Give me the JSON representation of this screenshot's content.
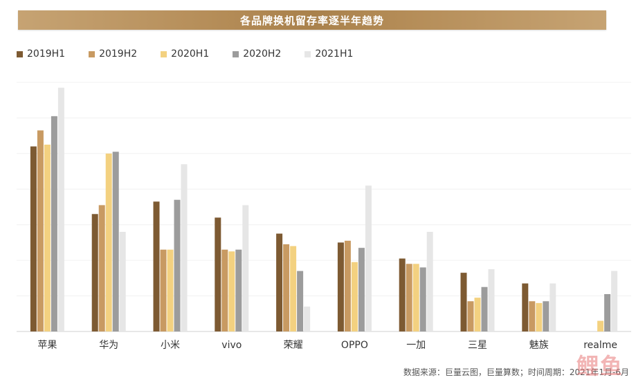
{
  "title": "各品牌换机留存率逐半年趋势",
  "source_text": "数据来源：巨量云图，巨量算数；时间周期：2021年1月-6月",
  "watermark_text": "鲤鱼",
  "colors": {
    "2019H1": "#7d5a32",
    "2019H2": "#c89a62",
    "2020H1": "#f3d180",
    "2020H2": "#9c9c9c",
    "2021H1": "#e6e6e6",
    "title_bar": "#b48c57",
    "gridline": "#f0f0f0"
  },
  "chart_data": {
    "type": "bar",
    "title": "各品牌换机留存率逐半年趋势",
    "categories": [
      "苹果",
      "华为",
      "小米",
      "vivo",
      "荣耀",
      "OPPO",
      "一加",
      "三星",
      "魅族",
      "realme"
    ],
    "series": [
      {
        "name": "2019H1",
        "values": [
          52,
          33,
          36.5,
          32,
          27.5,
          25,
          20.5,
          16.5,
          13.5,
          null
        ]
      },
      {
        "name": "2019H2",
        "values": [
          56.5,
          35.5,
          23,
          23,
          24.5,
          25.5,
          19,
          8.5,
          8.5,
          null
        ]
      },
      {
        "name": "2020H1",
        "values": [
          52.5,
          50,
          23,
          22.5,
          24,
          19.5,
          19,
          9.5,
          8,
          3
        ]
      },
      {
        "name": "2020H2",
        "values": [
          60.5,
          50.5,
          37,
          23,
          17,
          23.5,
          18,
          12.5,
          8.5,
          10.5
        ]
      },
      {
        "name": "2021H1",
        "values": [
          68.5,
          28,
          47,
          35.5,
          7,
          41,
          28,
          17.5,
          13.5,
          17
        ]
      }
    ],
    "ylim": [
      0,
      70
    ],
    "grid": true,
    "legend": "top-left"
  }
}
